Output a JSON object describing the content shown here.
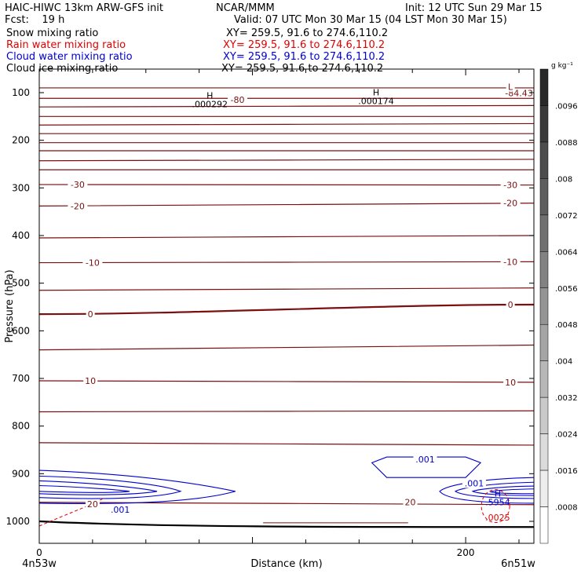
{
  "header": {
    "model": "HAIC-HIWC 13km ARW-GFS init",
    "org": "NCAR/MMM",
    "init": "Init: 12 UTC Sun 29 Mar 15",
    "fcst": "Fcst:    19 h",
    "valid": "Valid: 07 UTC Mon 30 Mar 15 (04 LST Mon 30 Mar 15)"
  },
  "fields": [
    {
      "name": "Snow mixing ratio",
      "xy": "XY= 259.5, 91.6 to 274.6,110.2",
      "color": "#000000"
    },
    {
      "name": "Rain water mixing ratio",
      "xy": "XY= 259.5, 91.6 to 274.6,110.2",
      "color": "#e00000"
    },
    {
      "name": "Cloud water mixing ratio",
      "xy": "XY= 259.5, 91.6 to 274.6,110.2",
      "color": "#0000d0"
    },
    {
      "name": "Cloud ice mixing ratio",
      "xy": "XY= 259.5, 91.6 to 274.6,110.2",
      "color": "#000000"
    }
  ],
  "colorbar": {
    "unit": "g kg⁻¹",
    "labels": [
      ".0096",
      ".0088",
      ".008",
      ".0072",
      ".0064",
      ".0056",
      ".0048",
      ".004",
      ".0032",
      ".0024",
      ".0016",
      ".0008"
    ]
  },
  "chart_data": {
    "type": "contour",
    "xlabel": "Distance (km)",
    "ylabel": "Pressure (hPa)",
    "xlim": [
      0,
      232
    ],
    "ylim": [
      1050,
      50
    ],
    "x_ticks": [
      0,
      200
    ],
    "x_tick_labels": [
      "0",
      "200"
    ],
    "y_ticks": [
      100,
      200,
      300,
      400,
      500,
      600,
      700,
      800,
      900,
      1000
    ],
    "x_end_labels": {
      "left": "4n53w",
      "right": "6n51w"
    },
    "temperature_contour_color": "#7a1010",
    "temperature_labels": [
      {
        "text": "-80",
        "x": 93,
        "p": 115
      },
      {
        "text": "-84.43",
        "x": 225,
        "p": 101
      },
      {
        "text": "L",
        "x": 221,
        "p": 88
      },
      {
        "text": "-30",
        "x": 18,
        "p": 293
      },
      {
        "text": "-30",
        "x": 221,
        "p": 294
      },
      {
        "text": "-20",
        "x": 18,
        "p": 338
      },
      {
        "text": "-20",
        "x": 221,
        "p": 332
      },
      {
        "text": "-10",
        "x": 25,
        "p": 457
      },
      {
        "text": "-10",
        "x": 221,
        "p": 455
      },
      {
        "text": "0",
        "x": 24,
        "p": 565
      },
      {
        "text": "0",
        "x": 221,
        "p": 545
      },
      {
        "text": "10",
        "x": 24,
        "p": 705
      },
      {
        "text": "10",
        "x": 221,
        "p": 708
      },
      {
        "text": "20",
        "x": 25,
        "p": 964
      },
      {
        "text": "20",
        "x": 174,
        "p": 960
      }
    ],
    "max_labels": [
      {
        "text": "H",
        "sub": ".000292",
        "x": 80,
        "p": 112,
        "color": "#000000"
      },
      {
        "text": "H",
        "sub": ".000174",
        "x": 158,
        "p": 106,
        "color": "#000000"
      },
      {
        "text": "H",
        "sub": ".5954",
        "x": 215,
        "p": 948,
        "color": "#0000d0"
      },
      {
        "text": "",
        "sub": ".0025",
        "x": 215,
        "p": 980,
        "color": "#e00000"
      }
    ],
    "cloud_water_labels": [
      {
        "text": ".001",
        "x": 181,
        "p": 870
      },
      {
        "text": ".001",
        "x": 204,
        "p": 920
      },
      {
        "text": ".001",
        "x": 38,
        "p": 975
      }
    ],
    "temperature_lines": [
      {
        "label": "-80",
        "p": [
          90,
          90
        ]
      },
      {
        "label": "",
        "p": [
          112,
          112
        ]
      },
      {
        "label": "",
        "p": [
          130,
          127
        ]
      },
      {
        "label": "",
        "p": [
          150,
          150
        ]
      },
      {
        "label": "",
        "p": [
          168,
          165
        ]
      },
      {
        "label": "",
        "p": [
          186,
          186
        ]
      },
      {
        "label": "",
        "p": [
          205,
          205
        ]
      },
      {
        "label": "",
        "p": [
          222,
          222
        ]
      },
      {
        "label": "",
        "p": [
          243,
          240
        ]
      },
      {
        "label": "",
        "p": [
          262,
          262
        ]
      },
      {
        "label": "-30",
        "p": [
          293,
          294
        ]
      },
      {
        "label": "-20",
        "p": [
          338,
          332
        ]
      },
      {
        "label": "",
        "p": [
          405,
          400
        ]
      },
      {
        "label": "-10",
        "p": [
          457,
          455
        ]
      },
      {
        "label": "",
        "p": [
          515,
          510
        ]
      },
      {
        "label": "0",
        "p": [
          565,
          545
        ]
      },
      {
        "label": "",
        "p": [
          640,
          630
        ]
      },
      {
        "label": "10",
        "p": [
          705,
          708
        ]
      },
      {
        "label": "",
        "p": [
          770,
          768
        ]
      },
      {
        "label": "",
        "p": [
          835,
          840
        ]
      },
      {
        "label": "20",
        "p": [
          960,
          965
        ]
      }
    ],
    "grid": false
  }
}
